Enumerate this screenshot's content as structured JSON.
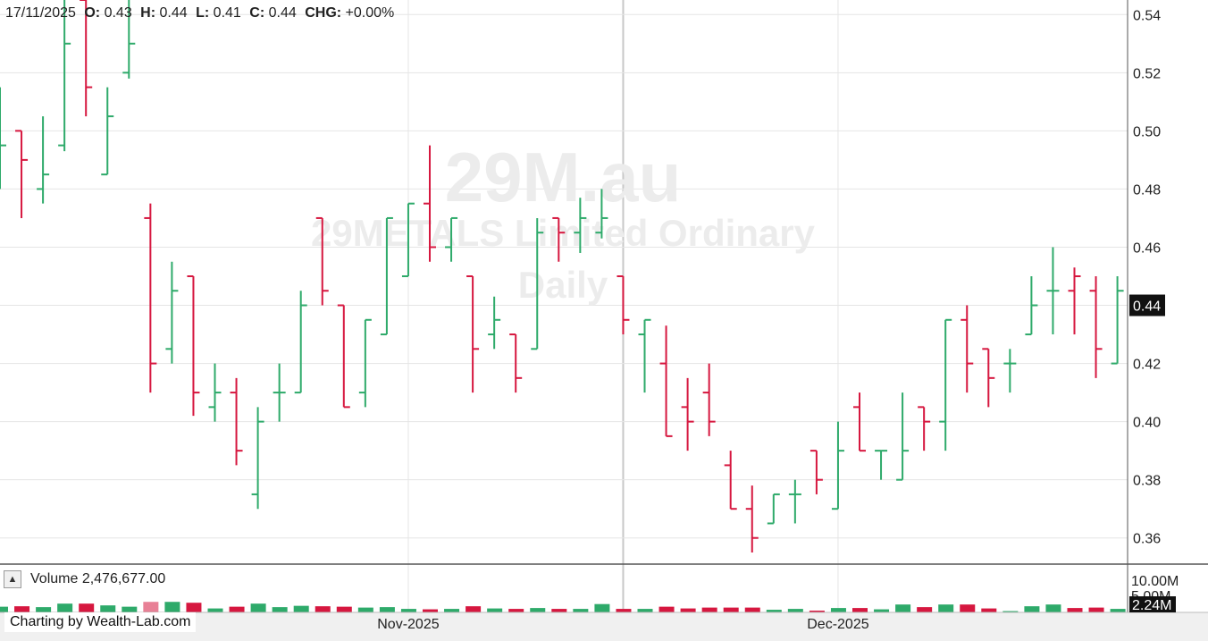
{
  "header": {
    "date": "17/11/2025",
    "o_label": "O:",
    "o_value": "0.43",
    "h_label": "H:",
    "h_value": "0.44",
    "l_label": "L:",
    "l_value": "0.41",
    "c_label": "C:",
    "c_value": "0.44",
    "chg_label": "CHG:",
    "chg_value": "+0.00%"
  },
  "watermark": {
    "symbol": "29M.au",
    "name": "29METALS Limited Ordinary",
    "period": "Daily"
  },
  "volume_panel": {
    "label": "Volume 2,476,677.00",
    "max_label": "10.00M",
    "mid_label": "5.00M",
    "current_label": "2.24M",
    "collapse_icon": "triangle-up-icon"
  },
  "credit": "Charting by Wealth-Lab.com",
  "last_price_label": "0.44",
  "colors": {
    "up": "#2eaa6a",
    "down": "#d6173f",
    "grid": "#e5e5e5",
    "last_price_bg": "#111111"
  },
  "chart_data": {
    "type": "ohlc",
    "x_labels": [
      {
        "index": 19,
        "label": "Nov-2025"
      },
      {
        "index": 39,
        "label": "Dec-2025"
      }
    ],
    "cursor_index": 29,
    "y_ticks": [
      "0.54",
      "0.52",
      "0.50",
      "0.48",
      "0.46",
      "0.44",
      "0.42",
      "0.40",
      "0.38",
      "0.36"
    ],
    "ylim": [
      0.351,
      0.545
    ],
    "volume_ylim": [
      0,
      10000000
    ],
    "bars": [
      {
        "o": 0.48,
        "h": 0.515,
        "l": 0.48,
        "c": 0.495,
        "v": 1300000,
        "up": true
      },
      {
        "o": 0.5,
        "h": 0.5,
        "l": 0.47,
        "c": 0.49,
        "v": 1400000,
        "up": false
      },
      {
        "o": 0.48,
        "h": 0.505,
        "l": 0.475,
        "c": 0.485,
        "v": 1200000,
        "up": true
      },
      {
        "o": 0.495,
        "h": 0.545,
        "l": 0.493,
        "c": 0.53,
        "v": 2000000,
        "up": true
      },
      {
        "o": 0.545,
        "h": 0.545,
        "l": 0.505,
        "c": 0.515,
        "v": 2000000,
        "up": false
      },
      {
        "o": 0.485,
        "h": 0.515,
        "l": 0.485,
        "c": 0.505,
        "v": 1600000,
        "up": true
      },
      {
        "o": 0.52,
        "h": 0.545,
        "l": 0.518,
        "c": 0.53,
        "v": 1300000,
        "up": true
      },
      {
        "o": 0.47,
        "h": 0.475,
        "l": 0.41,
        "c": 0.42,
        "v": 2400000,
        "up": false
      },
      {
        "o": 0.425,
        "h": 0.455,
        "l": 0.42,
        "c": 0.445,
        "v": 2400000,
        "up": true
      },
      {
        "o": 0.45,
        "h": 0.45,
        "l": 0.402,
        "c": 0.41,
        "v": 2200000,
        "up": false
      },
      {
        "o": 0.405,
        "h": 0.42,
        "l": 0.4,
        "c": 0.41,
        "v": 900000,
        "up": true
      },
      {
        "o": 0.41,
        "h": 0.415,
        "l": 0.385,
        "c": 0.39,
        "v": 1300000,
        "up": false
      },
      {
        "o": 0.375,
        "h": 0.405,
        "l": 0.37,
        "c": 0.4,
        "v": 2000000,
        "up": true
      },
      {
        "o": 0.41,
        "h": 0.42,
        "l": 0.4,
        "c": 0.41,
        "v": 1200000,
        "up": true
      },
      {
        "o": 0.41,
        "h": 0.445,
        "l": 0.41,
        "c": 0.44,
        "v": 1500000,
        "up": true
      },
      {
        "o": 0.47,
        "h": 0.47,
        "l": 0.44,
        "c": 0.445,
        "v": 1400000,
        "up": false
      },
      {
        "o": 0.44,
        "h": 0.44,
        "l": 0.405,
        "c": 0.405,
        "v": 1300000,
        "up": false
      },
      {
        "o": 0.41,
        "h": 0.435,
        "l": 0.405,
        "c": 0.435,
        "v": 1100000,
        "up": true
      },
      {
        "o": 0.43,
        "h": 0.47,
        "l": 0.43,
        "c": 0.47,
        "v": 1200000,
        "up": true
      },
      {
        "o": 0.45,
        "h": 0.475,
        "l": 0.45,
        "c": 0.475,
        "v": 800000,
        "up": true
      },
      {
        "o": 0.475,
        "h": 0.495,
        "l": 0.455,
        "c": 0.46,
        "v": 700000,
        "up": false
      },
      {
        "o": 0.46,
        "h": 0.47,
        "l": 0.455,
        "c": 0.47,
        "v": 800000,
        "up": true
      },
      {
        "o": 0.45,
        "h": 0.45,
        "l": 0.41,
        "c": 0.425,
        "v": 1400000,
        "up": false
      },
      {
        "o": 0.43,
        "h": 0.443,
        "l": 0.425,
        "c": 0.435,
        "v": 900000,
        "up": true
      },
      {
        "o": 0.43,
        "h": 0.43,
        "l": 0.41,
        "c": 0.415,
        "v": 800000,
        "up": false
      },
      {
        "o": 0.425,
        "h": 0.47,
        "l": 0.425,
        "c": 0.465,
        "v": 1000000,
        "up": true
      },
      {
        "o": 0.47,
        "h": 0.47,
        "l": 0.455,
        "c": 0.465,
        "v": 800000,
        "up": false
      },
      {
        "o": 0.465,
        "h": 0.477,
        "l": 0.458,
        "c": 0.47,
        "v": 800000,
        "up": true
      },
      {
        "o": 0.465,
        "h": 0.48,
        "l": 0.463,
        "c": 0.47,
        "v": 1900000,
        "up": true
      },
      {
        "o": 0.45,
        "h": 0.45,
        "l": 0.43,
        "c": 0.435,
        "v": 800000,
        "up": false
      },
      {
        "o": 0.43,
        "h": 0.435,
        "l": 0.41,
        "c": 0.435,
        "v": 800000,
        "up": true
      },
      {
        "o": 0.42,
        "h": 0.433,
        "l": 0.395,
        "c": 0.395,
        "v": 1300000,
        "up": false
      },
      {
        "o": 0.405,
        "h": 0.415,
        "l": 0.39,
        "c": 0.4,
        "v": 900000,
        "up": false
      },
      {
        "o": 0.41,
        "h": 0.42,
        "l": 0.395,
        "c": 0.4,
        "v": 1100000,
        "up": false
      },
      {
        "o": 0.385,
        "h": 0.39,
        "l": 0.37,
        "c": 0.37,
        "v": 1100000,
        "up": false
      },
      {
        "o": 0.37,
        "h": 0.378,
        "l": 0.355,
        "c": 0.36,
        "v": 1100000,
        "up": false
      },
      {
        "o": 0.365,
        "h": 0.375,
        "l": 0.365,
        "c": 0.375,
        "v": 600000,
        "up": true
      },
      {
        "o": 0.375,
        "h": 0.38,
        "l": 0.365,
        "c": 0.375,
        "v": 800000,
        "up": true
      },
      {
        "o": 0.39,
        "h": 0.39,
        "l": 0.375,
        "c": 0.38,
        "v": 400000,
        "up": false
      },
      {
        "o": 0.37,
        "h": 0.4,
        "l": 0.37,
        "c": 0.39,
        "v": 1000000,
        "up": true
      },
      {
        "o": 0.405,
        "h": 0.41,
        "l": 0.39,
        "c": 0.39,
        "v": 1000000,
        "up": false
      },
      {
        "o": 0.39,
        "h": 0.39,
        "l": 0.38,
        "c": 0.39,
        "v": 700000,
        "up": true
      },
      {
        "o": 0.38,
        "h": 0.41,
        "l": 0.38,
        "c": 0.39,
        "v": 1800000,
        "up": true
      },
      {
        "o": 0.405,
        "h": 0.405,
        "l": 0.39,
        "c": 0.4,
        "v": 1200000,
        "up": false
      },
      {
        "o": 0.4,
        "h": 0.435,
        "l": 0.39,
        "c": 0.435,
        "v": 1800000,
        "up": true
      },
      {
        "o": 0.435,
        "h": 0.44,
        "l": 0.41,
        "c": 0.42,
        "v": 1800000,
        "up": false
      },
      {
        "o": 0.425,
        "h": 0.425,
        "l": 0.405,
        "c": 0.415,
        "v": 900000,
        "up": false
      },
      {
        "o": 0.42,
        "h": 0.425,
        "l": 0.41,
        "c": 0.42,
        "v": 300000,
        "up": true
      },
      {
        "o": 0.43,
        "h": 0.45,
        "l": 0.43,
        "c": 0.44,
        "v": 1400000,
        "up": true
      },
      {
        "o": 0.445,
        "h": 0.46,
        "l": 0.43,
        "c": 0.445,
        "v": 1800000,
        "up": true
      },
      {
        "o": 0.445,
        "h": 0.453,
        "l": 0.43,
        "c": 0.45,
        "v": 1000000,
        "up": false
      },
      {
        "o": 0.445,
        "h": 0.45,
        "l": 0.415,
        "c": 0.425,
        "v": 1100000,
        "up": false
      },
      {
        "o": 0.42,
        "h": 0.45,
        "l": 0.42,
        "c": 0.445,
        "v": 800000,
        "up": true
      }
    ]
  }
}
